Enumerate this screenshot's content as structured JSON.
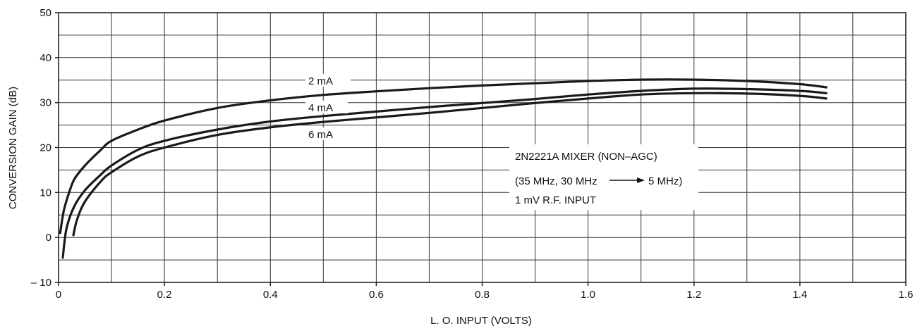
{
  "chart_data": {
    "type": "line",
    "xlabel": "L. O. INPUT (VOLTS)",
    "ylabel": "CONVERSION GAIN (dB)",
    "xlim": [
      0,
      1.6
    ],
    "ylim": [
      -10,
      50
    ],
    "x_ticks": [
      "0",
      "0.2",
      "0.4",
      "0.6",
      "0.8",
      "1.0",
      "1.2",
      "1.4",
      "1.6"
    ],
    "y_ticks": [
      "– 10",
      "0",
      "10",
      "20",
      "30",
      "40",
      "50"
    ],
    "grid": true,
    "series": [
      {
        "name": "2 mA",
        "x": [
          0.003,
          0.01,
          0.02,
          0.03,
          0.05,
          0.08,
          0.1,
          0.15,
          0.2,
          0.3,
          0.4,
          0.5,
          0.6,
          0.7,
          0.8,
          0.9,
          1.0,
          1.1,
          1.2,
          1.3,
          1.4,
          1.45
        ],
        "y": [
          1,
          6,
          10,
          13,
          16,
          19.5,
          21.5,
          24,
          26,
          28.8,
          30.5,
          31.7,
          32.5,
          33.2,
          33.8,
          34.3,
          34.8,
          35.1,
          35.1,
          34.8,
          34.1,
          33.4
        ]
      },
      {
        "name": "4 mA",
        "x": [
          0.008,
          0.015,
          0.03,
          0.05,
          0.08,
          0.1,
          0.15,
          0.2,
          0.3,
          0.4,
          0.5,
          0.6,
          0.7,
          0.8,
          0.9,
          1.0,
          1.1,
          1.2,
          1.3,
          1.4,
          1.45
        ],
        "y": [
          -4.5,
          2,
          7,
          10.5,
          14,
          16,
          19.5,
          21.5,
          24,
          25.8,
          27,
          28,
          29,
          29.9,
          30.8,
          31.8,
          32.6,
          33.1,
          33,
          32.6,
          32.1
        ]
      },
      {
        "name": "6 mA",
        "x": [
          0.028,
          0.035,
          0.05,
          0.08,
          0.1,
          0.15,
          0.2,
          0.3,
          0.4,
          0.5,
          0.6,
          0.7,
          0.8,
          0.9,
          1.0,
          1.1,
          1.2,
          1.3,
          1.4,
          1.45
        ],
        "y": [
          0.5,
          4,
          8,
          12.5,
          14.5,
          18,
          20,
          22.8,
          24.5,
          25.7,
          26.7,
          27.7,
          28.8,
          29.9,
          30.9,
          31.8,
          32.1,
          32,
          31.5,
          30.9
        ]
      }
    ],
    "annotation_lines": [
      "2N2221A MIXER (NON–AGC)",
      "(35 MHz, 30 MHz",
      "5 MHz)",
      "1 mV R.F. INPUT"
    ]
  },
  "colors": {
    "line": "#1a1a1a",
    "grid": "#333333",
    "background": "#ffffff"
  }
}
